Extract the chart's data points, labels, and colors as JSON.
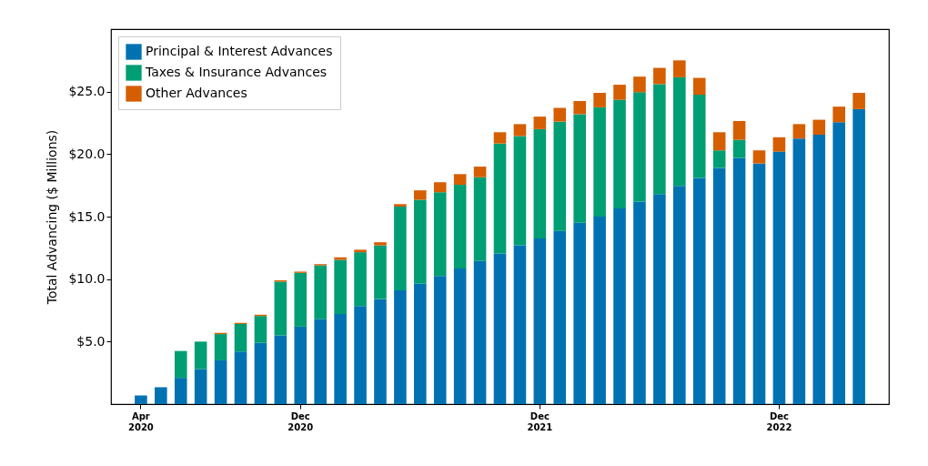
{
  "chart_data": {
    "type": "bar",
    "stacked": true,
    "ylabel": "Total Advancing ($ Millions)",
    "legend": "top left",
    "categories": [
      "Apr 2020",
      null,
      null,
      null,
      null,
      null,
      null,
      null,
      "Dec 2020",
      null,
      null,
      null,
      null,
      null,
      null,
      null,
      null,
      null,
      null,
      null,
      "Dec 2021",
      null,
      null,
      null,
      null,
      null,
      null,
      null,
      null,
      null,
      null,
      null,
      "Dec 2022",
      null,
      null,
      null,
      null
    ],
    "ylim": [
      0,
      30
    ],
    "yticks": [
      {
        "value": 5,
        "label": "$5.0"
      },
      {
        "value": 10,
        "label": "$10.0"
      },
      {
        "value": 15,
        "label": "$15.0"
      },
      {
        "value": 20,
        "label": "$20.0"
      },
      {
        "value": 25,
        "label": "$25.0"
      }
    ],
    "series": [
      {
        "name": "Principal & Interest Advances",
        "color": "#0072b2",
        "values": [
          0.7,
          1.35,
          2.1,
          2.8,
          3.5,
          4.2,
          4.9,
          5.5,
          6.2,
          6.8,
          7.2,
          7.85,
          8.4,
          9.1,
          9.65,
          10.25,
          10.85,
          11.45,
          12.05,
          12.7,
          13.25,
          13.85,
          14.5,
          15.0,
          15.65,
          16.2,
          16.8,
          17.45,
          18.1,
          18.9,
          19.7,
          19.25,
          20.2,
          21.25,
          21.55,
          22.55,
          23.6
        ]
      },
      {
        "name": "Taxes & Insurance Advances",
        "color": "#009e73",
        "values": [
          0,
          0,
          2.15,
          2.2,
          2.1,
          2.2,
          2.15,
          4.3,
          4.3,
          4.3,
          4.35,
          4.3,
          4.3,
          6.7,
          6.7,
          6.7,
          6.7,
          6.7,
          8.8,
          8.75,
          8.75,
          8.75,
          8.7,
          8.75,
          8.7,
          8.75,
          8.8,
          8.7,
          6.65,
          1.4,
          1.45,
          0,
          0,
          0,
          0,
          0,
          0
        ]
      },
      {
        "name": "Other Advances",
        "color": "#d55e00",
        "values": [
          0,
          0,
          0,
          0,
          0.1,
          0.1,
          0.1,
          0.1,
          0.1,
          0.1,
          0.2,
          0.2,
          0.25,
          0.2,
          0.75,
          0.8,
          0.85,
          0.85,
          0.9,
          0.95,
          1.0,
          1.1,
          1.05,
          1.15,
          1.2,
          1.25,
          1.3,
          1.35,
          1.35,
          1.45,
          1.5,
          1.05,
          1.15,
          1.15,
          1.2,
          1.25,
          1.3
        ]
      }
    ]
  }
}
